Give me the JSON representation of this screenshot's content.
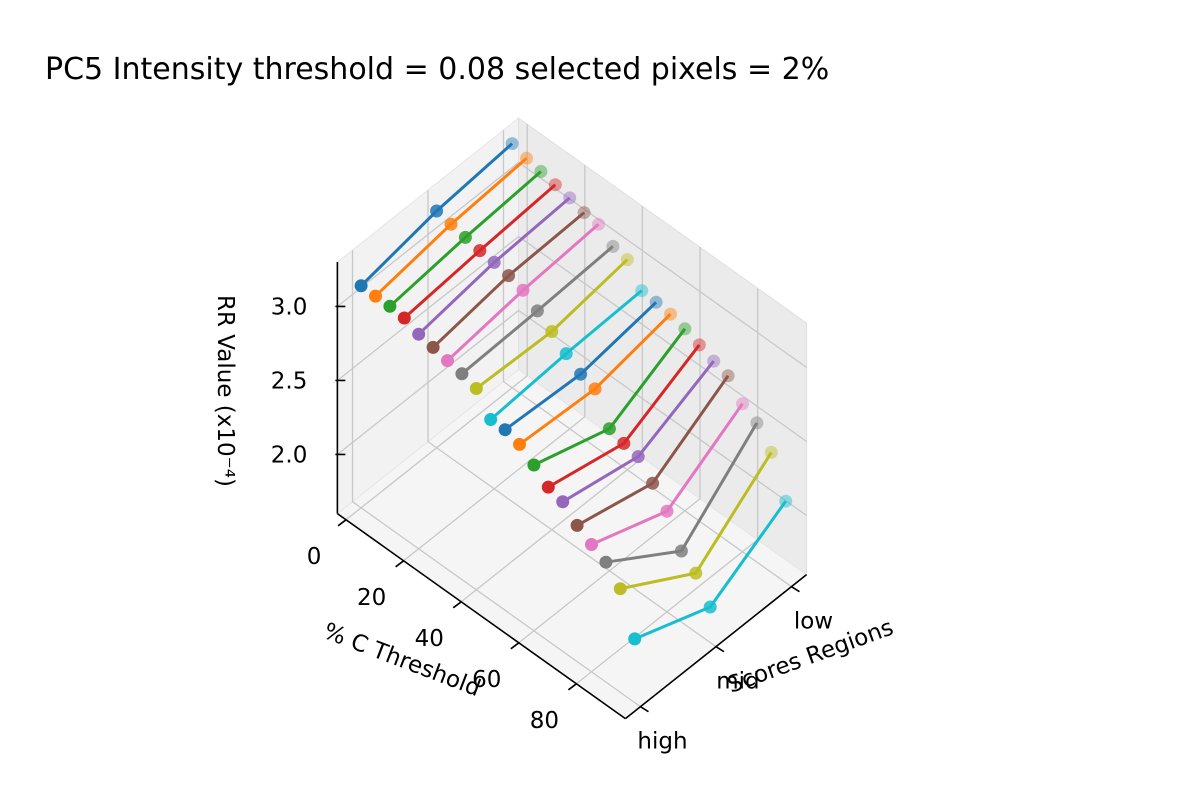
{
  "chart_data": {
    "type": "line",
    "projection": "3d",
    "title": "PC5 Intensity threshold = 0.08 selected pixels = 2%",
    "xlabel": "% C Threshold",
    "ylabel": "Scores Regions",
    "zlabel": "RR Value (x10⁻⁴)",
    "x_ticks": [
      "0",
      "20",
      "40",
      "60",
      "80"
    ],
    "y_categories": [
      "high",
      "mid",
      "low"
    ],
    "z_ticks": [
      "2.0",
      "2.5",
      "3.0"
    ],
    "zlim": [
      1.6,
      3.3
    ],
    "grid": true,
    "marker": "circle",
    "series": [
      {
        "x": 0,
        "values": [
          3.1,
          3.2,
          3.25
        ],
        "color": "#1f77b4"
      },
      {
        "x": 5,
        "values": [
          3.1,
          3.18,
          3.22
        ],
        "color": "#ff7f0e"
      },
      {
        "x": 10,
        "values": [
          3.1,
          3.16,
          3.2
        ],
        "color": "#2ca02c"
      },
      {
        "x": 15,
        "values": [
          3.09,
          3.14,
          3.18
        ],
        "color": "#d62728"
      },
      {
        "x": 20,
        "values": [
          3.05,
          3.13,
          3.16
        ],
        "color": "#9467bd"
      },
      {
        "x": 25,
        "values": [
          3.03,
          3.11,
          3.13
        ],
        "color": "#8c564b"
      },
      {
        "x": 30,
        "values": [
          3.01,
          3.08,
          3.12
        ],
        "color": "#e377c2"
      },
      {
        "x": 35,
        "values": [
          2.99,
          3.01,
          3.04
        ],
        "color": "#7f7f7f"
      },
      {
        "x": 40,
        "values": [
          2.96,
          2.94,
          3.02
        ],
        "color": "#bcbd22"
      },
      {
        "x": 45,
        "values": [
          2.82,
          2.86,
          2.88
        ],
        "color": "#17becf"
      },
      {
        "x": 50,
        "values": [
          2.82,
          2.79,
          2.87
        ],
        "color": "#1f77b4"
      },
      {
        "x": 55,
        "values": [
          2.79,
          2.76,
          2.86
        ],
        "color": "#ff7f0e"
      },
      {
        "x": 60,
        "values": [
          2.72,
          2.56,
          2.83
        ],
        "color": "#2ca02c"
      },
      {
        "x": 65,
        "values": [
          2.64,
          2.53,
          2.79
        ],
        "color": "#d62728"
      },
      {
        "x": 70,
        "values": [
          2.61,
          2.51,
          2.75
        ],
        "color": "#9467bd"
      },
      {
        "x": 75,
        "values": [
          2.52,
          2.4,
          2.72
        ],
        "color": "#8c564b"
      },
      {
        "x": 80,
        "values": [
          2.46,
          2.28,
          2.6
        ],
        "color": "#e377c2"
      },
      {
        "x": 85,
        "values": [
          2.41,
          2.08,
          2.54
        ],
        "color": "#7f7f7f"
      },
      {
        "x": 90,
        "values": [
          2.3,
          2.0,
          2.41
        ],
        "color": "#bcbd22"
      },
      {
        "x": 95,
        "values": [
          2.03,
          1.84,
          2.15
        ],
        "color": "#17becf"
      }
    ]
  }
}
